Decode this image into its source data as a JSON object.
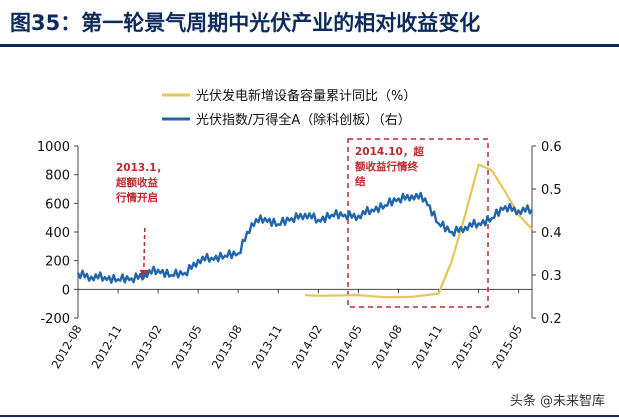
{
  "page_title": "图35：第一轮景气周期中光伏产业的相对收益变化",
  "watermark": "头条 @未来智库",
  "colors": {
    "pv_index": "#2166ac",
    "new_capacity": "#e6c65a",
    "annotation": "#c0282d",
    "title": "#0d2a5c"
  },
  "chart_data": {
    "type": "line",
    "x_ticks": [
      "2012-08",
      "2012-11",
      "2013-02",
      "2013-05",
      "2013-08",
      "2013-11",
      "2014-02",
      "2014-05",
      "2014-08",
      "2014-11",
      "2015-02",
      "2015-05"
    ],
    "left_axis": {
      "ticks": [
        -200,
        0,
        200,
        400,
        600,
        800,
        1000
      ],
      "range": [
        -200,
        1000
      ]
    },
    "right_axis": {
      "ticks": [
        0.2,
        0.3,
        0.4,
        0.5,
        0.6
      ],
      "range": [
        0.2,
        0.6
      ]
    },
    "legend_placement": "top-center",
    "series": [
      {
        "name": "光伏发电新增设备容量累计同比（%）",
        "axis": "left",
        "color": "#e6c65a",
        "points": [
          [
            "2014-01",
            -40
          ],
          [
            "2014-02",
            -45
          ],
          [
            "2014-04",
            -42
          ],
          [
            "2014-05",
            -40
          ],
          [
            "2014-06",
            -48
          ],
          [
            "2014-07",
            -55
          ],
          [
            "2014-09",
            -52
          ],
          [
            "2014-11",
            -30
          ],
          [
            "2014-12",
            200
          ],
          [
            "2015-01",
            520
          ],
          [
            "2015-02",
            870
          ],
          [
            "2015-03",
            830
          ],
          [
            "2015-04",
            680
          ],
          [
            "2015-05",
            520
          ],
          [
            "2015-06",
            420
          ]
        ]
      },
      {
        "name": "光伏指数/万得全A（除科创板）（右）",
        "axis": "right",
        "color": "#2166ac",
        "points": [
          [
            "2012-08",
            0.305
          ],
          [
            "2012-09",
            0.296
          ],
          [
            "2012-10",
            0.295
          ],
          [
            "2012-11",
            0.29
          ],
          [
            "2012-12",
            0.292
          ],
          [
            "2013-01",
            0.302
          ],
          [
            "2013-02",
            0.312
          ],
          [
            "2013-03",
            0.3
          ],
          [
            "2013-04",
            0.305
          ],
          [
            "2013-05",
            0.335
          ],
          [
            "2013-06",
            0.34
          ],
          [
            "2013-07",
            0.345
          ],
          [
            "2013-08",
            0.35
          ],
          [
            "2013-09",
            0.42
          ],
          [
            "2013-10",
            0.432
          ],
          [
            "2013-11",
            0.418
          ],
          [
            "2013-12",
            0.432
          ],
          [
            "2014-01",
            0.442
          ],
          [
            "2014-02",
            0.428
          ],
          [
            "2014-03",
            0.44
          ],
          [
            "2014-04",
            0.44
          ],
          [
            "2014-05",
            0.438
          ],
          [
            "2014-06",
            0.452
          ],
          [
            "2014-07",
            0.462
          ],
          [
            "2014-08",
            0.478
          ],
          [
            "2014-09",
            0.485
          ],
          [
            "2014-10",
            0.478
          ],
          [
            "2014-11",
            0.42
          ],
          [
            "2014-12",
            0.4
          ],
          [
            "2015-01",
            0.412
          ],
          [
            "2015-02",
            0.42
          ],
          [
            "2015-03",
            0.432
          ],
          [
            "2015-04",
            0.46
          ],
          [
            "2015-05",
            0.45
          ],
          [
            "2015-06",
            0.452
          ]
        ]
      }
    ],
    "annotations": [
      {
        "text": "2013.1，超额收益行情开启",
        "lines": [
          "2013.1，",
          "超额收益",
          "行情开启"
        ],
        "date": "2013-01",
        "color": "#c0282d"
      },
      {
        "text": "2014.10，超额收益行情终结",
        "lines": [
          "2014.10，超",
          "额收益行情终",
          "结"
        ],
        "date": "2014-10",
        "color": "#c0282d"
      }
    ]
  }
}
